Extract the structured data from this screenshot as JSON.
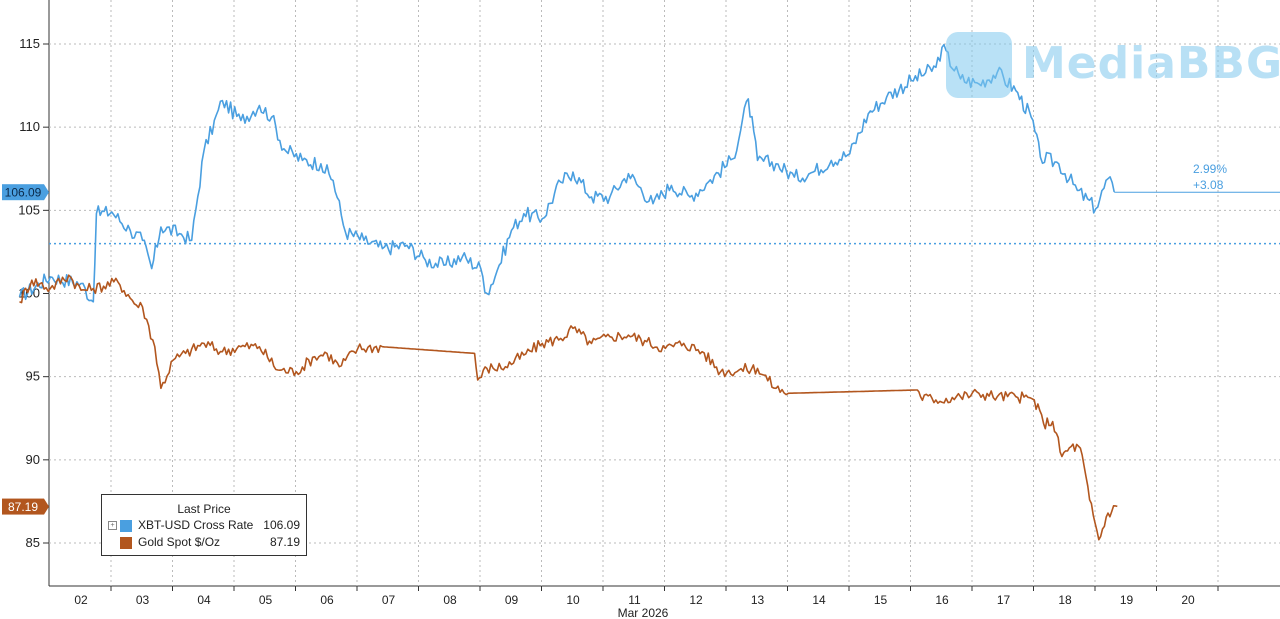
{
  "chart_data": {
    "type": "line",
    "xlabel": "Mar 2026",
    "ylabel": "",
    "ylim": [
      82.5,
      117.5
    ],
    "yticks": [
      85,
      90,
      95,
      100,
      105,
      110,
      115
    ],
    "day_labels": [
      "02",
      "03",
      "04",
      "05",
      "06",
      "07",
      "08",
      "09",
      "10",
      "11",
      "12",
      "13",
      "14",
      "15",
      "16",
      "17",
      "18",
      "19",
      "20"
    ],
    "grid": true,
    "legend_position": "bottom-left",
    "legend_title": "Last Price",
    "reference_line": 103,
    "series": [
      {
        "name": "XBT-USD Cross Rate",
        "color": "#4a9fe0",
        "last_value_label": "106.09",
        "change_pct": "2.99%",
        "change_abs": "+3.08",
        "points": [
          [
            "01",
            99.8
          ],
          [
            "01.5",
            101.0
          ],
          [
            "02",
            100.6
          ],
          [
            "02.2",
            99.5
          ],
          [
            "02.25",
            104.8
          ],
          [
            "02.5",
            104.9
          ],
          [
            "02.8",
            103.8
          ],
          [
            "03",
            103.2
          ],
          [
            "03.15",
            101.5
          ],
          [
            "03.3",
            104.0
          ],
          [
            "03.6",
            103.6
          ],
          [
            "03.8",
            103.2
          ],
          [
            "04",
            108.6
          ],
          [
            "04.3",
            111.6
          ],
          [
            "04.6",
            110.4
          ],
          [
            "04.9",
            111.3
          ],
          [
            "05.1",
            110.6
          ],
          [
            "05.3",
            108.7
          ],
          [
            "05.6",
            108.0
          ],
          [
            "05.9",
            107.8
          ],
          [
            "06.1",
            106.8
          ],
          [
            "06.3",
            103.7
          ],
          [
            "06.6",
            103.2
          ],
          [
            "06.9",
            102.7
          ],
          [
            "07.3",
            102.9
          ],
          [
            "07.6",
            102.0
          ],
          [
            "07.9",
            101.7
          ],
          [
            "08.2",
            102.2
          ],
          [
            "08.5",
            101.5
          ],
          [
            "08.6",
            100.0
          ],
          [
            "08.8",
            101.7
          ],
          [
            "09",
            103.8
          ],
          [
            "09.2",
            104.8
          ],
          [
            "09.5",
            104.5
          ],
          [
            "09.8",
            106.7
          ],
          [
            "10",
            107.3
          ],
          [
            "10.3",
            105.8
          ],
          [
            "10.6",
            105.8
          ],
          [
            "10.9",
            107.2
          ],
          [
            "11.3",
            105.4
          ],
          [
            "11.6",
            106.5
          ],
          [
            "11.9",
            105.8
          ],
          [
            "12.2",
            106.7
          ],
          [
            "12.6",
            108.1
          ],
          [
            "12.85",
            111.7
          ],
          [
            "13",
            108.0
          ],
          [
            "13.3",
            107.8
          ],
          [
            "13.6",
            107.0
          ],
          [
            "13.9",
            107.3
          ],
          [
            "14.2",
            108.0
          ],
          [
            "14.5",
            108.4
          ],
          [
            "14.8",
            110.8
          ],
          [
            "15.1",
            111.8
          ],
          [
            "15.5",
            112.8
          ],
          [
            "15.9",
            113.6
          ],
          [
            "16",
            114.8
          ],
          [
            "16.3",
            112.9
          ],
          [
            "16.6",
            112.6
          ],
          [
            "16.9",
            113.3
          ],
          [
            "17.2",
            112.2
          ],
          [
            "17.45",
            110.6
          ],
          [
            "17.6",
            108.2
          ],
          [
            "17.9",
            107.8
          ],
          [
            "18.2",
            106.2
          ],
          [
            "18.5",
            105.1
          ],
          [
            "18.7",
            106.9
          ],
          [
            "18.8",
            106.1
          ]
        ]
      },
      {
        "name": "Gold Spot $/Oz",
        "color": "#b2561e",
        "last_value_label": "87.19",
        "points": [
          [
            "01",
            99.5
          ],
          [
            "01.2",
            100.8
          ],
          [
            "01.5",
            100.3
          ],
          [
            "01.8",
            101.1
          ],
          [
            "02",
            100.2
          ],
          [
            "02.2",
            100.3
          ],
          [
            "02.6",
            100.7
          ],
          [
            "02.9",
            99.3
          ],
          [
            "03",
            99.2
          ],
          [
            "03.2",
            96.8
          ],
          [
            "03.3",
            94.3
          ],
          [
            "03.5",
            96.0
          ],
          [
            "03.7",
            96.4
          ],
          [
            "04",
            97.0
          ],
          [
            "04.3",
            96.5
          ],
          [
            "04.6",
            96.8
          ],
          [
            "04.9",
            96.8
          ],
          [
            "05.2",
            95.4
          ],
          [
            "05.5",
            95.3
          ],
          [
            "05.8",
            96.2
          ],
          [
            "06",
            96.4
          ],
          [
            "06.2",
            95.6
          ],
          [
            "06.5",
            96.7
          ],
          [
            "06.9",
            96.8
          ],
          [
            "08.4",
            96.4
          ],
          [
            "08.45",
            94.8
          ],
          [
            "08.6",
            95.5
          ],
          [
            "08.9",
            95.6
          ],
          [
            "09.2",
            96.3
          ],
          [
            "09.5",
            97.0
          ],
          [
            "09.8",
            97.3
          ],
          [
            "10",
            97.9
          ],
          [
            "10.3",
            97.0
          ],
          [
            "10.6",
            97.4
          ],
          [
            "10.9",
            97.5
          ],
          [
            "11.2",
            97.1
          ],
          [
            "11.5",
            96.7
          ],
          [
            "11.8",
            97.0
          ],
          [
            "12.1",
            96.5
          ],
          [
            "12.4",
            95.3
          ],
          [
            "12.7",
            95.4
          ],
          [
            "13",
            95.5
          ],
          [
            "13.3",
            94.3
          ],
          [
            "13.5",
            94.0
          ],
          [
            "15.6",
            94.2
          ],
          [
            "15.65",
            93.8
          ],
          [
            "15.9",
            93.6
          ],
          [
            "16.3",
            93.8
          ],
          [
            "16.6",
            94.0
          ],
          [
            "16.9",
            93.8
          ],
          [
            "17.2",
            93.8
          ],
          [
            "17.5",
            93.6
          ],
          [
            "17.65",
            92.2
          ],
          [
            "17.8",
            92.3
          ],
          [
            "17.95",
            90.2
          ],
          [
            "18.1",
            90.8
          ],
          [
            "18.25",
            90.7
          ],
          [
            "18.4",
            87.6
          ],
          [
            "18.55",
            85.2
          ],
          [
            "18.7",
            86.8
          ],
          [
            "18.85",
            87.2
          ]
        ]
      }
    ]
  },
  "watermark": {
    "text": "MediaBBG"
  }
}
